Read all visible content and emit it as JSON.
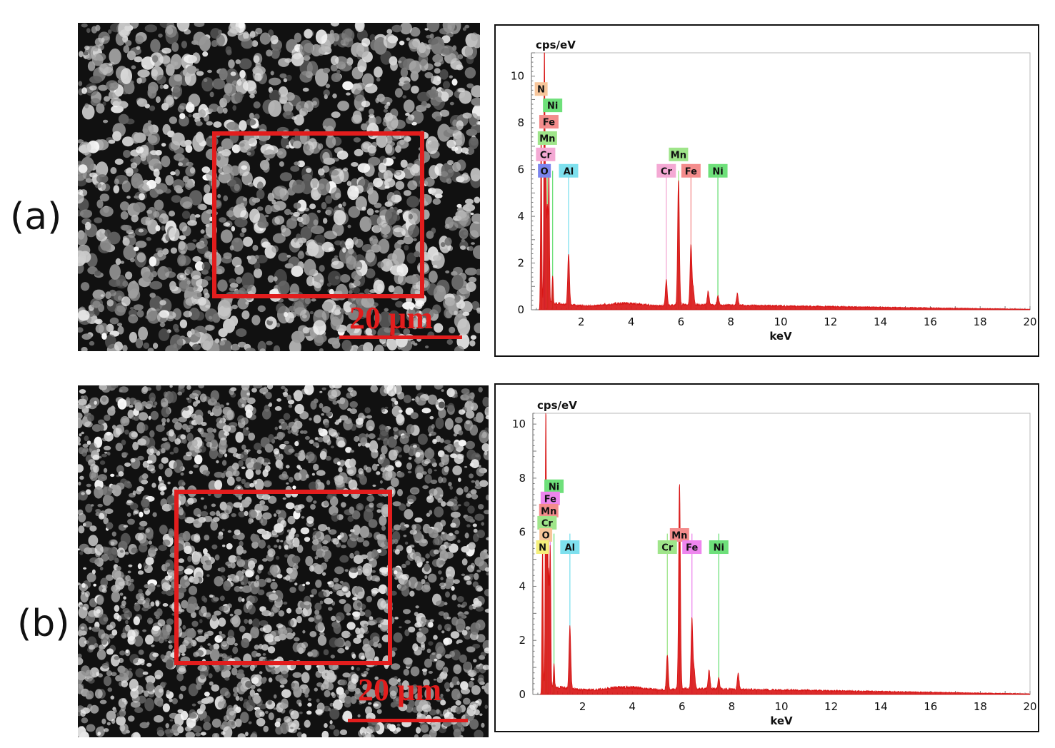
{
  "panels": [
    {
      "label": "(a)",
      "scale_bar": "20 µm"
    },
    {
      "label": "(b)",
      "scale_bar": "20 µm"
    }
  ],
  "colors": {
    "spectrum": "#d81414",
    "roi": "#e21d1d",
    "scale_bar": "#e21d1d"
  },
  "chart_data": [
    {
      "type": "line",
      "ylabel": "cps/eV",
      "xlabel": "keV",
      "xlim": [
        0,
        20
      ],
      "ylim": [
        0,
        11
      ],
      "x_ticks": [
        2,
        4,
        6,
        8,
        10,
        12,
        14,
        16,
        18,
        20
      ],
      "y_ticks": [
        0,
        2,
        4,
        6,
        8,
        10
      ],
      "grid": false,
      "series": [
        {
          "peaks_keV_cps": [
            [
              0.39,
              7.5
            ],
            [
              0.52,
              11.2
            ],
            [
              0.58,
              5.5
            ],
            [
              0.64,
              4.0
            ],
            [
              0.7,
              5.8
            ],
            [
              0.85,
              1.2
            ],
            [
              1.49,
              2.2
            ],
            [
              5.41,
              1.1
            ],
            [
              5.9,
              5.4
            ],
            [
              6.4,
              2.6
            ],
            [
              6.49,
              0.7
            ],
            [
              7.09,
              0.6
            ],
            [
              7.48,
              0.4
            ],
            [
              8.26,
              0.5
            ]
          ]
        }
      ],
      "element_labels": [
        {
          "text": "N",
          "x": 0.39,
          "y": 9.45,
          "color": "#f7c59a"
        },
        {
          "text": "Ni",
          "x": 0.85,
          "y": 8.75,
          "color": "#6ee07a"
        },
        {
          "text": "Fe",
          "x": 0.7,
          "y": 8.05,
          "color": "#f48c8c"
        },
        {
          "text": "Mn",
          "x": 0.64,
          "y": 7.35,
          "color": "#9fe58a"
        },
        {
          "text": "Cr",
          "x": 0.57,
          "y": 6.65,
          "color": "#f4a9d4"
        },
        {
          "text": "O",
          "x": 0.52,
          "y": 5.95,
          "color": "#7a84ee"
        },
        {
          "text": "Al",
          "x": 1.49,
          "y": 5.95,
          "color": "#7ee0ee"
        },
        {
          "text": "Mn",
          "x": 5.9,
          "y": 6.65,
          "color": "#9fe58a"
        },
        {
          "text": "Cr",
          "x": 5.41,
          "y": 5.95,
          "color": "#f4a9d4"
        },
        {
          "text": "Fe",
          "x": 6.4,
          "y": 5.95,
          "color": "#f48c8c"
        },
        {
          "text": "Ni",
          "x": 7.48,
          "y": 5.95,
          "color": "#6ee07a"
        }
      ],
      "marker_lines": [
        {
          "x": 0.39,
          "color": "#f7a35a"
        },
        {
          "x": 0.52,
          "color": "#7a84ee"
        },
        {
          "x": 0.57,
          "color": "#f4a9d4"
        },
        {
          "x": 0.64,
          "color": "#9fe58a"
        },
        {
          "x": 0.7,
          "color": "#f48c8c"
        },
        {
          "x": 0.85,
          "color": "#6ee07a"
        },
        {
          "x": 1.49,
          "color": "#7ee0ee"
        },
        {
          "x": 5.41,
          "color": "#f4a9d4"
        },
        {
          "x": 5.9,
          "color": "#9fe58a"
        },
        {
          "x": 6.4,
          "color": "#f48c8c"
        },
        {
          "x": 7.48,
          "color": "#6ee07a"
        }
      ]
    },
    {
      "type": "line",
      "ylabel": "cps/eV",
      "xlabel": "keV",
      "xlim": [
        0,
        20
      ],
      "ylim": [
        0,
        10.4
      ],
      "x_ticks": [
        2,
        4,
        6,
        8,
        10,
        12,
        14,
        16,
        18,
        20
      ],
      "y_ticks": [
        0,
        2,
        4,
        6,
        8,
        10
      ],
      "grid": false,
      "series": [
        {
          "peaks_keV_cps": [
            [
              0.39,
              5.2
            ],
            [
              0.52,
              10.4
            ],
            [
              0.58,
              5.5
            ],
            [
              0.64,
              4.2
            ],
            [
              0.7,
              5.2
            ],
            [
              0.85,
              0.9
            ],
            [
              1.49,
              2.3
            ],
            [
              5.41,
              1.3
            ],
            [
              5.9,
              7.6
            ],
            [
              6.4,
              2.6
            ],
            [
              6.49,
              0.7
            ],
            [
              7.09,
              0.7
            ],
            [
              7.48,
              0.4
            ],
            [
              8.26,
              0.6
            ]
          ]
        }
      ],
      "element_labels": [
        {
          "text": "Ni",
          "x": 0.85,
          "y": 7.7,
          "color": "#6ee07a"
        },
        {
          "text": "Fe",
          "x": 0.7,
          "y": 7.25,
          "color": "#ee86ee"
        },
        {
          "text": "Mn",
          "x": 0.64,
          "y": 6.8,
          "color": "#f48c8c"
        },
        {
          "text": "Cr",
          "x": 0.57,
          "y": 6.35,
          "color": "#9fe58a"
        },
        {
          "text": "O",
          "x": 0.52,
          "y": 5.9,
          "color": "#f7c59a"
        },
        {
          "text": "N",
          "x": 0.39,
          "y": 5.45,
          "color": "#f5f07a"
        },
        {
          "text": "Al",
          "x": 1.49,
          "y": 5.45,
          "color": "#7ee0ee"
        },
        {
          "text": "Mn",
          "x": 5.9,
          "y": 5.9,
          "color": "#f48c8c"
        },
        {
          "text": "Cr",
          "x": 5.41,
          "y": 5.45,
          "color": "#9fe58a"
        },
        {
          "text": "Fe",
          "x": 6.4,
          "y": 5.45,
          "color": "#ee86ee"
        },
        {
          "text": "Ni",
          "x": 7.48,
          "y": 5.45,
          "color": "#6ee07a"
        }
      ],
      "marker_lines": [
        {
          "x": 0.39,
          "color": "#f5e04a"
        },
        {
          "x": 0.52,
          "color": "#f7a35a"
        },
        {
          "x": 0.57,
          "color": "#9fe58a"
        },
        {
          "x": 0.64,
          "color": "#f48c8c"
        },
        {
          "x": 0.7,
          "color": "#ee86ee"
        },
        {
          "x": 0.85,
          "color": "#6ee07a"
        },
        {
          "x": 1.49,
          "color": "#7ee0ee"
        },
        {
          "x": 5.41,
          "color": "#9fe58a"
        },
        {
          "x": 5.9,
          "color": "#f48c8c"
        },
        {
          "x": 6.4,
          "color": "#ee86ee"
        },
        {
          "x": 7.48,
          "color": "#6ee07a"
        }
      ]
    }
  ]
}
